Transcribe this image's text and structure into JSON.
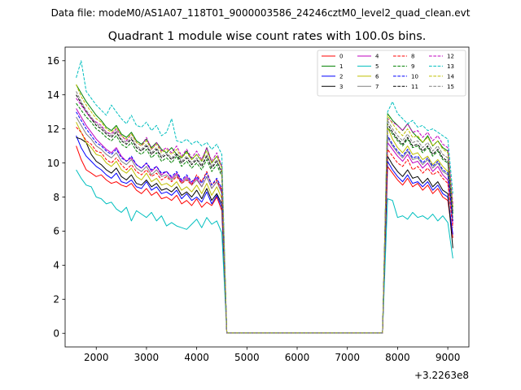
{
  "chart_data": {
    "type": "line",
    "suptitle": "Data file: modeM0/AS1A07_118T01_9000003586_24246cztM0_level2_quad_clean.evt",
    "title": "Quadrant 1 module wise count rates with 100.0s bins.",
    "xlabel": "",
    "ylabel": "",
    "x_offset_label": "+3.2263e8",
    "xlim": [
      1380,
      9420
    ],
    "ylim": [
      -0.8,
      16.8
    ],
    "x_ticks": [
      2000,
      3000,
      4000,
      5000,
      6000,
      7000,
      8000,
      9000
    ],
    "y_ticks": [
      0,
      2,
      4,
      6,
      8,
      10,
      12,
      14,
      16
    ],
    "x": [
      1600,
      1700,
      1800,
      1900,
      2000,
      2100,
      2200,
      2300,
      2400,
      2500,
      2600,
      2700,
      2800,
      2900,
      3000,
      3100,
      3200,
      3300,
      3400,
      3500,
      3600,
      3700,
      3800,
      3900,
      4000,
      4100,
      4200,
      4300,
      4400,
      4500,
      4600,
      7700,
      7800,
      7900,
      8000,
      8100,
      8200,
      8300,
      8400,
      8500,
      8600,
      8700,
      8800,
      8900,
      9000,
      9100
    ],
    "series": [
      {
        "name": "0",
        "color": "#ff0000",
        "dash": "solid",
        "values": [
          11.0,
          10.2,
          9.6,
          9.4,
          9.2,
          9.3,
          9.0,
          8.8,
          8.9,
          8.7,
          8.6,
          8.8,
          8.4,
          8.2,
          8.5,
          8.1,
          8.3,
          7.9,
          8.0,
          7.8,
          8.1,
          7.6,
          7.8,
          7.5,
          7.9,
          7.4,
          7.7,
          7.5,
          8.0,
          7.2,
          0.02,
          0.02,
          9.8,
          9.4,
          9.0,
          8.7,
          9.1,
          8.6,
          8.8,
          8.4,
          8.7,
          8.2,
          8.5,
          8.0,
          7.8,
          5.6
        ]
      },
      {
        "name": "1",
        "color": "#008000",
        "dash": "solid",
        "values": [
          14.6,
          14.1,
          13.6,
          13.2,
          12.8,
          12.5,
          12.1,
          11.9,
          12.2,
          11.7,
          11.5,
          11.8,
          11.3,
          11.1,
          11.4,
          10.9,
          11.2,
          10.8,
          10.6,
          10.9,
          10.5,
          10.3,
          10.7,
          10.2,
          10.5,
          10.1,
          10.9,
          10.0,
          10.4,
          9.8,
          0.02,
          0.02,
          12.9,
          12.5,
          12.2,
          11.9,
          12.3,
          11.8,
          11.5,
          11.2,
          11.6,
          11.0,
          11.3,
          10.9,
          10.7,
          7.4
        ]
      },
      {
        "name": "2",
        "color": "#0000ff",
        "dash": "solid",
        "values": [
          11.6,
          10.9,
          10.4,
          10.1,
          9.8,
          9.6,
          9.3,
          9.1,
          9.4,
          8.9,
          8.8,
          9.0,
          8.6,
          8.5,
          8.9,
          8.4,
          8.6,
          8.2,
          8.3,
          8.1,
          8.4,
          7.9,
          8.2,
          7.8,
          8.0,
          7.7,
          8.3,
          7.6,
          8.1,
          7.4,
          0.02,
          0.02,
          10.1,
          9.6,
          9.2,
          8.9,
          9.3,
          8.8,
          8.9,
          8.6,
          8.9,
          8.4,
          8.7,
          8.2,
          8.0,
          5.8
        ]
      },
      {
        "name": "3",
        "color": "#000000",
        "dash": "solid",
        "values": [
          11.5,
          11.4,
          11.2,
          10.5,
          10.1,
          9.9,
          9.6,
          9.4,
          9.7,
          9.2,
          9.0,
          9.3,
          8.8,
          8.7,
          9.0,
          8.6,
          8.8,
          8.4,
          8.5,
          8.3,
          8.6,
          8.1,
          8.3,
          8.0,
          8.4,
          7.9,
          8.5,
          7.8,
          8.2,
          7.6,
          0.02,
          0.02,
          10.4,
          9.9,
          9.5,
          9.2,
          9.6,
          9.1,
          9.2,
          8.8,
          9.1,
          8.6,
          8.9,
          8.4,
          8.2,
          5.0
        ]
      },
      {
        "name": "4",
        "color": "#bf00bf",
        "dash": "solid",
        "values": [
          13.2,
          12.7,
          12.2,
          11.8,
          11.4,
          11.1,
          10.8,
          10.6,
          10.9,
          10.4,
          10.1,
          10.3,
          9.9,
          9.7,
          10.0,
          9.5,
          9.8,
          9.3,
          9.5,
          9.1,
          9.4,
          8.9,
          9.2,
          8.8,
          9.1,
          8.6,
          9.2,
          8.5,
          8.9,
          8.3,
          0.02,
          0.02,
          11.2,
          10.8,
          10.4,
          10.1,
          10.5,
          10.0,
          10.1,
          9.7,
          10.0,
          9.5,
          9.8,
          9.3,
          9.0,
          6.4
        ]
      },
      {
        "name": "5",
        "color": "#00bfbf",
        "dash": "solid",
        "values": [
          9.6,
          9.1,
          8.7,
          8.6,
          8.0,
          7.9,
          7.6,
          7.7,
          7.3,
          7.1,
          7.4,
          6.6,
          7.2,
          7.0,
          6.8,
          7.1,
          6.6,
          6.9,
          6.3,
          6.5,
          6.3,
          6.2,
          6.1,
          6.4,
          6.7,
          6.2,
          6.8,
          6.4,
          6.6,
          5.9,
          0.02,
          0.02,
          7.9,
          7.8,
          6.8,
          6.9,
          6.7,
          7.1,
          6.8,
          6.9,
          6.7,
          7.0,
          6.6,
          6.9,
          6.5,
          4.4
        ]
      },
      {
        "name": "6",
        "color": "#bfbf00",
        "dash": "solid",
        "values": [
          12.4,
          11.8,
          11.2,
          10.9,
          10.5,
          10.4,
          10.0,
          9.8,
          10.1,
          9.6,
          9.4,
          9.7,
          9.2,
          9.0,
          9.4,
          8.9,
          9.1,
          8.7,
          8.8,
          8.6,
          8.9,
          8.4,
          8.6,
          8.3,
          8.7,
          8.2,
          8.8,
          8.1,
          8.6,
          7.9,
          0.02,
          0.02,
          12.1,
          11.4,
          10.9,
          10.6,
          11.0,
          10.5,
          10.6,
          10.2,
          10.4,
          9.9,
          10.2,
          9.8,
          9.5,
          6.8
        ]
      },
      {
        "name": "7",
        "color": "#808080",
        "dash": "solid",
        "values": [
          12.7,
          12.2,
          11.7,
          11.4,
          11.0,
          10.8,
          10.5,
          10.3,
          10.6,
          10.1,
          9.9,
          10.2,
          9.7,
          9.5,
          9.8,
          9.3,
          9.6,
          9.2,
          9.3,
          9.0,
          9.3,
          8.8,
          9.1,
          8.7,
          9.0,
          8.6,
          9.2,
          8.5,
          8.9,
          8.2,
          0.02,
          0.02,
          11.5,
          11.0,
          10.6,
          10.3,
          10.7,
          10.2,
          10.3,
          9.9,
          10.2,
          9.7,
          10.0,
          9.5,
          9.3,
          6.6
        ]
      },
      {
        "name": "8",
        "color": "#ff0000",
        "dash": "dashed",
        "values": [
          12.1,
          11.8,
          11.3,
          11.1,
          10.7,
          10.6,
          10.2,
          10.0,
          10.3,
          9.9,
          9.6,
          9.9,
          9.5,
          9.3,
          9.6,
          9.2,
          9.4,
          9.0,
          9.2,
          8.9,
          9.2,
          8.8,
          9.0,
          8.7,
          9.3,
          8.9,
          9.5,
          8.7,
          9.0,
          8.4,
          0.02,
          0.02,
          10.8,
          10.4,
          10.0,
          9.8,
          10.2,
          9.6,
          9.8,
          9.4,
          9.7,
          9.3,
          9.5,
          9.1,
          8.8,
          6.2
        ]
      },
      {
        "name": "9",
        "color": "#008000",
        "dash": "dashed",
        "values": [
          13.5,
          13.1,
          12.7,
          12.4,
          12.0,
          11.8,
          11.5,
          11.3,
          11.6,
          11.1,
          10.9,
          11.2,
          10.7,
          10.5,
          10.8,
          10.3,
          10.6,
          10.1,
          10.3,
          10.0,
          10.4,
          9.8,
          10.1,
          9.7,
          10.0,
          9.6,
          10.2,
          9.5,
          9.9,
          9.2,
          0.02,
          0.02,
          12.1,
          11.7,
          11.3,
          11.0,
          11.4,
          10.9,
          11.0,
          10.6,
          10.9,
          10.4,
          10.7,
          10.2,
          10.0,
          7.0
        ]
      },
      {
        "name": "10",
        "color": "#0000ff",
        "dash": "dashed",
        "values": [
          13.0,
          12.5,
          12.0,
          11.6,
          11.2,
          11.0,
          10.7,
          10.5,
          10.8,
          10.3,
          10.1,
          10.4,
          9.9,
          9.7,
          10.0,
          9.6,
          9.8,
          9.4,
          9.5,
          9.2,
          9.5,
          9.0,
          9.3,
          8.9,
          9.2,
          8.8,
          9.4,
          8.7,
          9.1,
          8.5,
          0.02,
          0.02,
          11.6,
          11.1,
          10.7,
          10.4,
          10.8,
          10.3,
          10.4,
          10.0,
          10.3,
          9.8,
          10.1,
          9.6,
          9.4,
          6.6
        ]
      },
      {
        "name": "11",
        "color": "#000000",
        "dash": "dashed",
        "values": [
          14.0,
          13.5,
          13.0,
          12.6,
          12.2,
          12.0,
          11.7,
          11.5,
          11.8,
          11.3,
          11.1,
          11.4,
          10.9,
          10.7,
          11.0,
          10.5,
          10.8,
          10.3,
          10.5,
          10.2,
          10.5,
          10.0,
          10.3,
          9.9,
          10.2,
          9.8,
          10.4,
          9.7,
          10.1,
          9.4,
          0.02,
          0.02,
          12.3,
          11.8,
          11.4,
          11.1,
          11.5,
          11.0,
          11.1,
          10.7,
          11.0,
          10.5,
          10.8,
          10.3,
          10.1,
          7.1
        ]
      },
      {
        "name": "12",
        "color": "#bf00bf",
        "dash": "dashed",
        "values": [
          13.8,
          13.4,
          13.0,
          12.6,
          12.4,
          12.2,
          11.8,
          11.7,
          12.0,
          11.6,
          11.3,
          11.7,
          11.2,
          11.0,
          11.5,
          10.8,
          11.2,
          10.7,
          10.9,
          10.6,
          11.0,
          10.4,
          10.8,
          10.3,
          10.7,
          10.2,
          10.9,
          10.1,
          10.6,
          9.8,
          0.02,
          0.02,
          12.6,
          12.4,
          12.2,
          11.9,
          12.3,
          11.8,
          11.9,
          11.5,
          11.8,
          11.3,
          11.6,
          11.1,
          10.9,
          7.6
        ]
      },
      {
        "name": "13",
        "color": "#00bfbf",
        "dash": "dashed",
        "values": [
          15.0,
          16.0,
          14.2,
          13.8,
          13.4,
          13.1,
          12.8,
          13.4,
          13.0,
          12.6,
          12.3,
          12.8,
          12.2,
          12.1,
          12.4,
          11.9,
          12.2,
          11.6,
          11.8,
          12.6,
          11.3,
          11.2,
          11.4,
          11.1,
          11.3,
          11.0,
          11.2,
          10.8,
          11.1,
          10.5,
          0.02,
          0.02,
          13.0,
          13.6,
          12.9,
          12.6,
          12.3,
          12.5,
          12.1,
          12.2,
          11.9,
          12.0,
          11.8,
          11.6,
          11.4,
          8.2
        ]
      },
      {
        "name": "14",
        "color": "#bfbf00",
        "dash": "dashed",
        "values": [
          14.6,
          13.9,
          13.4,
          13.0,
          12.6,
          12.4,
          12.0,
          11.8,
          12.1,
          11.6,
          11.4,
          11.7,
          11.2,
          11.0,
          11.3,
          10.8,
          11.1,
          10.6,
          10.8,
          10.5,
          10.8,
          10.3,
          10.6,
          10.2,
          10.5,
          10.1,
          10.7,
          10.0,
          10.4,
          9.7,
          0.02,
          0.02,
          12.8,
          12.3,
          11.9,
          11.6,
          12.0,
          11.5,
          11.6,
          11.2,
          11.5,
          11.0,
          11.3,
          10.8,
          10.6,
          7.4
        ]
      },
      {
        "name": "15",
        "color": "#808080",
        "dash": "dashed",
        "values": [
          14.2,
          13.6,
          13.1,
          12.7,
          12.3,
          12.1,
          11.8,
          11.6,
          11.9,
          11.4,
          11.2,
          11.5,
          11.0,
          10.8,
          11.1,
          10.6,
          10.9,
          10.4,
          10.6,
          10.3,
          10.6,
          10.1,
          10.4,
          10.0,
          10.3,
          9.9,
          10.5,
          9.8,
          10.2,
          9.5,
          0.02,
          0.02,
          12.5,
          12.0,
          11.6,
          11.3,
          11.7,
          11.2,
          11.3,
          10.9,
          11.2,
          10.7,
          11.0,
          10.5,
          10.3,
          7.2
        ]
      }
    ]
  }
}
